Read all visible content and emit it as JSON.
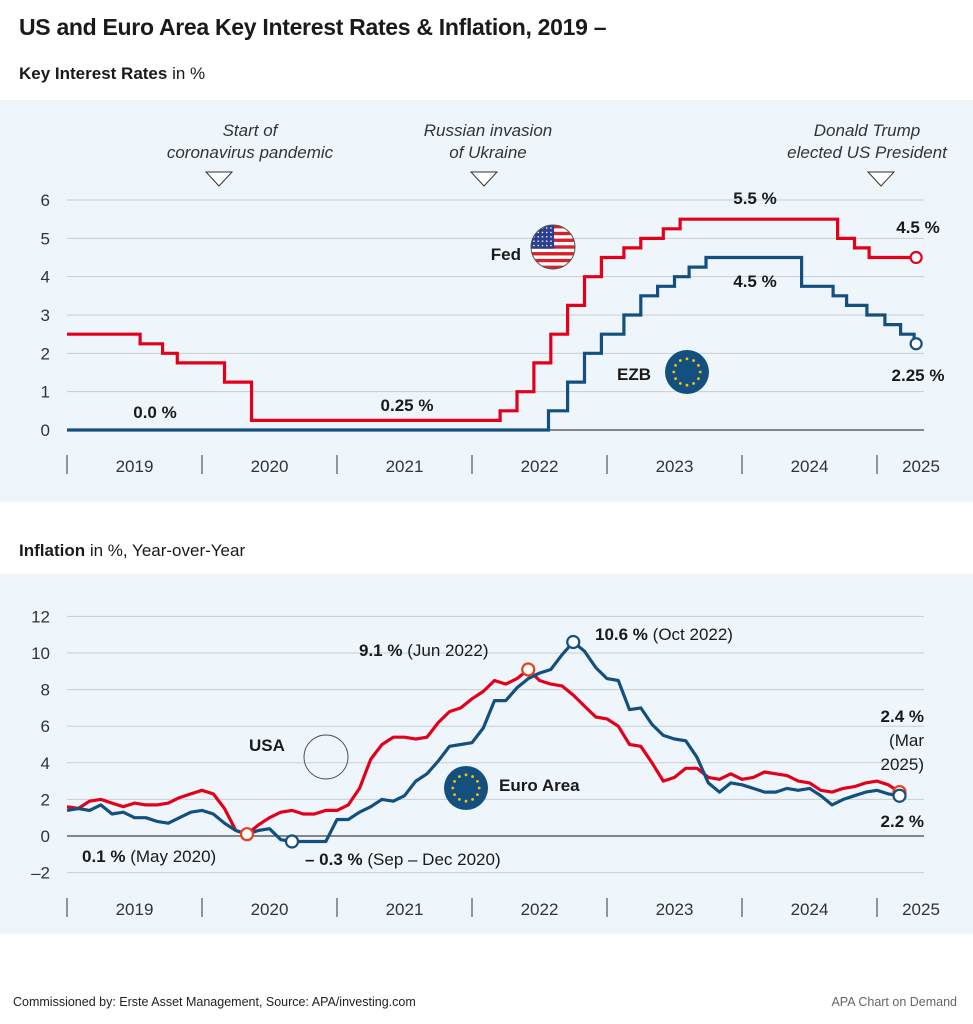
{
  "title": "US and Euro Area Key Interest Rates & Inflation, 2019 –",
  "footer": {
    "source": "Commissioned by: Erste Asset Management, Source: APA/investing.com",
    "credit": "APA Chart on Demand"
  },
  "colors": {
    "us": "#e3001b",
    "euro": "#14507f",
    "panel_bg": "#eef6fc",
    "grid": "#c8cdd2",
    "flag_stars": "#f5c400"
  },
  "chart_data": [
    {
      "id": "rates",
      "type": "line",
      "subtitle_bold": "Key Interest Rates",
      "subtitle_rest": " in %",
      "title": "Key Interest Rates in %",
      "xlabel": "",
      "ylabel": "%",
      "ylim": [
        0,
        6
      ],
      "yticks": [
        "0",
        "1",
        "2",
        "3",
        "4",
        "5",
        "6"
      ],
      "xticks": [
        "2019",
        "2020",
        "2021",
        "2022",
        "2023",
        "2024",
        "2025"
      ],
      "x_unit": "months since Jan 2019",
      "grid": true,
      "step": true,
      "series": [
        {
          "name": "Fed",
          "color": "#e3001b",
          "points": [
            [
              0,
              2.5
            ],
            [
              6.5,
              2.5
            ],
            [
              6.5,
              2.25
            ],
            [
              8.5,
              2.25
            ],
            [
              8.5,
              2.0
            ],
            [
              9.8,
              2.0
            ],
            [
              9.8,
              1.75
            ],
            [
              14,
              1.75
            ],
            [
              14,
              1.25
            ],
            [
              16.4,
              1.25
            ],
            [
              16.4,
              0.25
            ],
            [
              38.5,
              0.25
            ],
            [
              38.5,
              0.5
            ],
            [
              40,
              0.5
            ],
            [
              40,
              1.0
            ],
            [
              41.5,
              1.0
            ],
            [
              41.5,
              1.75
            ],
            [
              43,
              1.75
            ],
            [
              43,
              2.5
            ],
            [
              44.5,
              2.5
            ],
            [
              44.5,
              3.25
            ],
            [
              46,
              3.25
            ],
            [
              46,
              4.0
            ],
            [
              47.5,
              4.0
            ],
            [
              47.5,
              4.5
            ],
            [
              49.5,
              4.5
            ],
            [
              49.5,
              4.75
            ],
            [
              51,
              4.75
            ],
            [
              51,
              5.0
            ],
            [
              53,
              5.0
            ],
            [
              53,
              5.25
            ],
            [
              54.5,
              5.25
            ],
            [
              54.5,
              5.5
            ],
            [
              68.5,
              5.5
            ],
            [
              68.5,
              5.0
            ],
            [
              70,
              5.0
            ],
            [
              70,
              4.75
            ],
            [
              71.3,
              4.75
            ],
            [
              71.3,
              4.5
            ],
            [
              75.3,
              4.5
            ]
          ],
          "end_label": "4.5 %"
        },
        {
          "name": "EZB",
          "color": "#14507f",
          "points": [
            [
              0,
              0
            ],
            [
              42.8,
              0
            ],
            [
              42.8,
              0.5
            ],
            [
              44.5,
              0.5
            ],
            [
              44.5,
              1.25
            ],
            [
              46,
              1.25
            ],
            [
              46,
              2.0
            ],
            [
              47.5,
              2.0
            ],
            [
              47.5,
              2.5
            ],
            [
              49.5,
              2.5
            ],
            [
              49.5,
              3.0
            ],
            [
              51,
              3.0
            ],
            [
              51,
              3.5
            ],
            [
              52.5,
              3.5
            ],
            [
              52.5,
              3.75
            ],
            [
              54,
              3.75
            ],
            [
              54,
              4.0
            ],
            [
              55.3,
              4.0
            ],
            [
              55.3,
              4.25
            ],
            [
              56.8,
              4.25
            ],
            [
              56.8,
              4.5
            ],
            [
              65.3,
              4.5
            ],
            [
              65.3,
              3.75
            ],
            [
              68.1,
              3.75
            ],
            [
              68.1,
              3.5
            ],
            [
              69.3,
              3.5
            ],
            [
              69.3,
              3.25
            ],
            [
              71.1,
              3.25
            ],
            [
              71.1,
              3.0
            ],
            [
              72.7,
              3.0
            ],
            [
              72.7,
              2.75
            ],
            [
              74.1,
              2.75
            ],
            [
              74.1,
              2.5
            ],
            [
              75.3,
              2.5
            ],
            [
              75.3,
              2.25
            ]
          ],
          "end_label": "2.25 %"
        }
      ],
      "labels": {
        "fed": "Fed",
        "ezb": "EZB",
        "fed_peak": "5.5 %",
        "ezb_peak": "4.5 %",
        "fed_low": "0.25 %",
        "ezb_low": "0.0 %",
        "fed_end": "4.5 %",
        "ezb_end": "2.25 %"
      },
      "annotations": [
        {
          "text_lines": [
            "Start of",
            "coronavirus pandemic"
          ],
          "month": 14
        },
        {
          "text_lines": [
            "Russian invasion",
            "of Ukraine"
          ],
          "month": 37.5
        },
        {
          "text_lines": [
            "Donald Trump",
            "elected US President"
          ],
          "month": 71.5
        }
      ]
    },
    {
      "id": "inflation",
      "type": "line",
      "subtitle_bold": "Inflation",
      "subtitle_rest": " in %, Year-over-Year",
      "title": "Inflation in %, Year-over-Year",
      "xlabel": "",
      "ylabel": "%",
      "ylim": [
        -2,
        12
      ],
      "yticks": [
        "–2",
        "0",
        "2",
        "4",
        "6",
        "8",
        "10",
        "12"
      ],
      "ytick_values": [
        -2,
        0,
        2,
        4,
        6,
        8,
        10,
        12
      ],
      "xticks": [
        "2019",
        "2020",
        "2021",
        "2022",
        "2023",
        "2024",
        "2025"
      ],
      "x_unit": "months since Jan 2019",
      "grid": true,
      "series": [
        {
          "name": "USA",
          "color": "#e3001b",
          "values": [
            1.6,
            1.5,
            1.9,
            2.0,
            1.8,
            1.6,
            1.8,
            1.7,
            1.7,
            1.8,
            2.1,
            2.3,
            2.5,
            2.3,
            1.5,
            0.3,
            0.1,
            0.6,
            1.0,
            1.3,
            1.4,
            1.2,
            1.2,
            1.4,
            1.4,
            1.7,
            2.6,
            4.2,
            5.0,
            5.4,
            5.4,
            5.3,
            5.4,
            6.2,
            6.8,
            7.0,
            7.5,
            7.9,
            8.5,
            8.3,
            8.6,
            9.1,
            8.5,
            8.3,
            8.2,
            7.7,
            7.1,
            6.5,
            6.4,
            6.0,
            5.0,
            4.9,
            4.0,
            3.0,
            3.2,
            3.7,
            3.7,
            3.2,
            3.1,
            3.4,
            3.1,
            3.2,
            3.5,
            3.4,
            3.3,
            3.0,
            2.9,
            2.5,
            2.4,
            2.6,
            2.7,
            2.9,
            3.0,
            2.8,
            2.4
          ]
        },
        {
          "name": "Euro Area",
          "color": "#14507f",
          "values": [
            1.4,
            1.5,
            1.4,
            1.7,
            1.2,
            1.3,
            1.0,
            1.0,
            0.8,
            0.7,
            1.0,
            1.3,
            1.4,
            1.2,
            0.7,
            0.3,
            0.1,
            0.3,
            0.4,
            -0.2,
            -0.3,
            -0.3,
            -0.3,
            -0.3,
            0.9,
            0.9,
            1.3,
            1.6,
            2.0,
            1.9,
            2.2,
            3.0,
            3.4,
            4.1,
            4.9,
            5.0,
            5.1,
            5.9,
            7.4,
            7.4,
            8.1,
            8.6,
            8.9,
            9.1,
            9.9,
            10.6,
            10.1,
            9.2,
            8.6,
            8.5,
            6.9,
            7.0,
            6.1,
            5.5,
            5.3,
            5.2,
            4.3,
            2.9,
            2.4,
            2.9,
            2.8,
            2.6,
            2.4,
            2.4,
            2.6,
            2.5,
            2.6,
            2.2,
            1.7,
            2.0,
            2.2,
            2.4,
            2.5,
            2.3,
            2.2
          ]
        }
      ],
      "labels": {
        "usa": "USA",
        "euro": "Euro Area",
        "us_peak_value": "9.1 %",
        "us_peak_date": "(Jun 2022)",
        "eu_peak_value": "10.6 %",
        "eu_peak_date": "(Oct 2022)",
        "us_low_value": "0.1 %",
        "us_low_date": "(May 2020)",
        "eu_low_value": "– 0.3 %",
        "eu_low_date": "(Sep – Dec 2020)",
        "us_end_value": "2.4 %",
        "us_end_date_1": "(Mar",
        "us_end_date_2": "2025)",
        "eu_end_value": "2.2 %"
      },
      "markers": [
        {
          "series": "USA",
          "month": 16,
          "value": 0.1
        },
        {
          "series": "Euro Area",
          "month": 20,
          "value": -0.3
        },
        {
          "series": "USA",
          "month": 41,
          "value": 9.1
        },
        {
          "series": "Euro Area",
          "month": 45,
          "value": 10.6
        },
        {
          "series": "USA",
          "month": 74,
          "value": 2.4
        },
        {
          "series": "Euro Area",
          "month": 74,
          "value": 2.2
        }
      ]
    }
  ]
}
